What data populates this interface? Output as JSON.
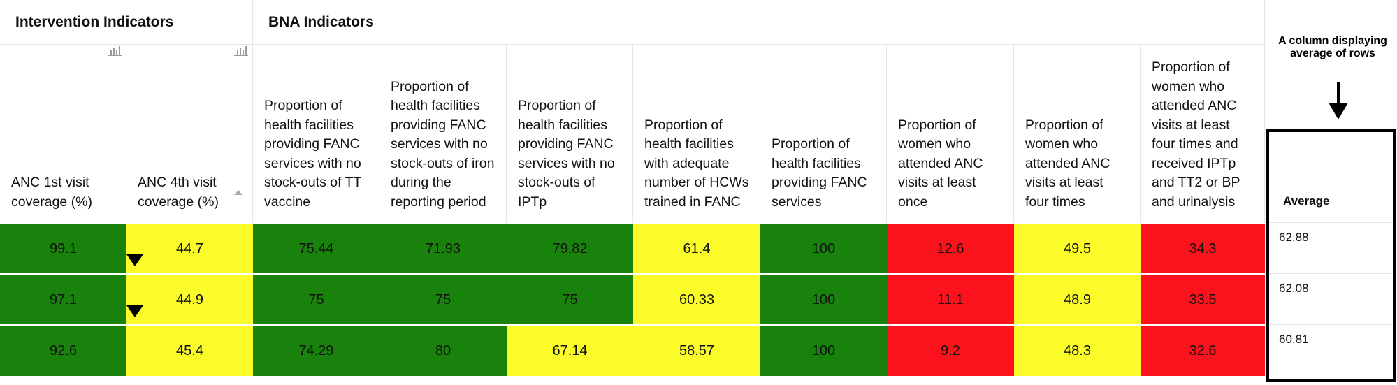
{
  "groups": {
    "intervention": "Intervention Indicators",
    "bna": "BNA Indicators"
  },
  "columns": [
    "ANC 1st visit coverage (%)",
    "ANC 4th visit coverage (%)",
    "Proportion of health facilities providing FANC services with no stock-outs of TT vaccine",
    "Proportion of health facilities providing FANC services with no stock-outs of iron during the reporting period",
    "Proportion of health facilities providing FANC services with no stock-outs of IPTp",
    "Proportion of health facilities with adequate number of HCWs trained in FANC",
    "Proportion of health facilities providing FANC services",
    "Proportion of women who attended ANC visits at least once",
    "Proportion of women who attended ANC visits at least four times",
    "Proportion of women who attended ANC visits at least four times and received IPTp and TT2 or BP and urinalysis"
  ],
  "rows": [
    {
      "values": [
        "99.1",
        "44.7",
        "75.44",
        "71.93",
        "79.82",
        "61.4",
        "100",
        "12.6",
        "49.5",
        "34.3"
      ],
      "status": [
        "green",
        "yellow",
        "green",
        "green",
        "green",
        "yellow",
        "green",
        "red",
        "yellow",
        "red"
      ],
      "average": "62.88"
    },
    {
      "values": [
        "97.1",
        "44.9",
        "75",
        "75",
        "75",
        "60.33",
        "100",
        "11.1",
        "48.9",
        "33.5"
      ],
      "status": [
        "green",
        "yellow",
        "green",
        "green",
        "green",
        "yellow",
        "green",
        "red",
        "yellow",
        "red"
      ],
      "average": "62.08"
    },
    {
      "values": [
        "92.6",
        "45.4",
        "74.29",
        "80",
        "67.14",
        "58.57",
        "100",
        "9.2",
        "48.3",
        "32.6"
      ],
      "status": [
        "green",
        "yellow",
        "green",
        "green",
        "yellow",
        "yellow",
        "green",
        "red",
        "yellow",
        "red"
      ],
      "average": "60.81"
    }
  ],
  "average_header": "Average",
  "annotation": "A column displaying average of rows",
  "colors": {
    "green": "#18820c",
    "yellow": "#fbfb2a",
    "red": "#fb121c"
  },
  "icons": [
    "bar-chart-icon",
    "sort-ascending-icon",
    "down-triangle-icon",
    "down-arrow-icon"
  ]
}
